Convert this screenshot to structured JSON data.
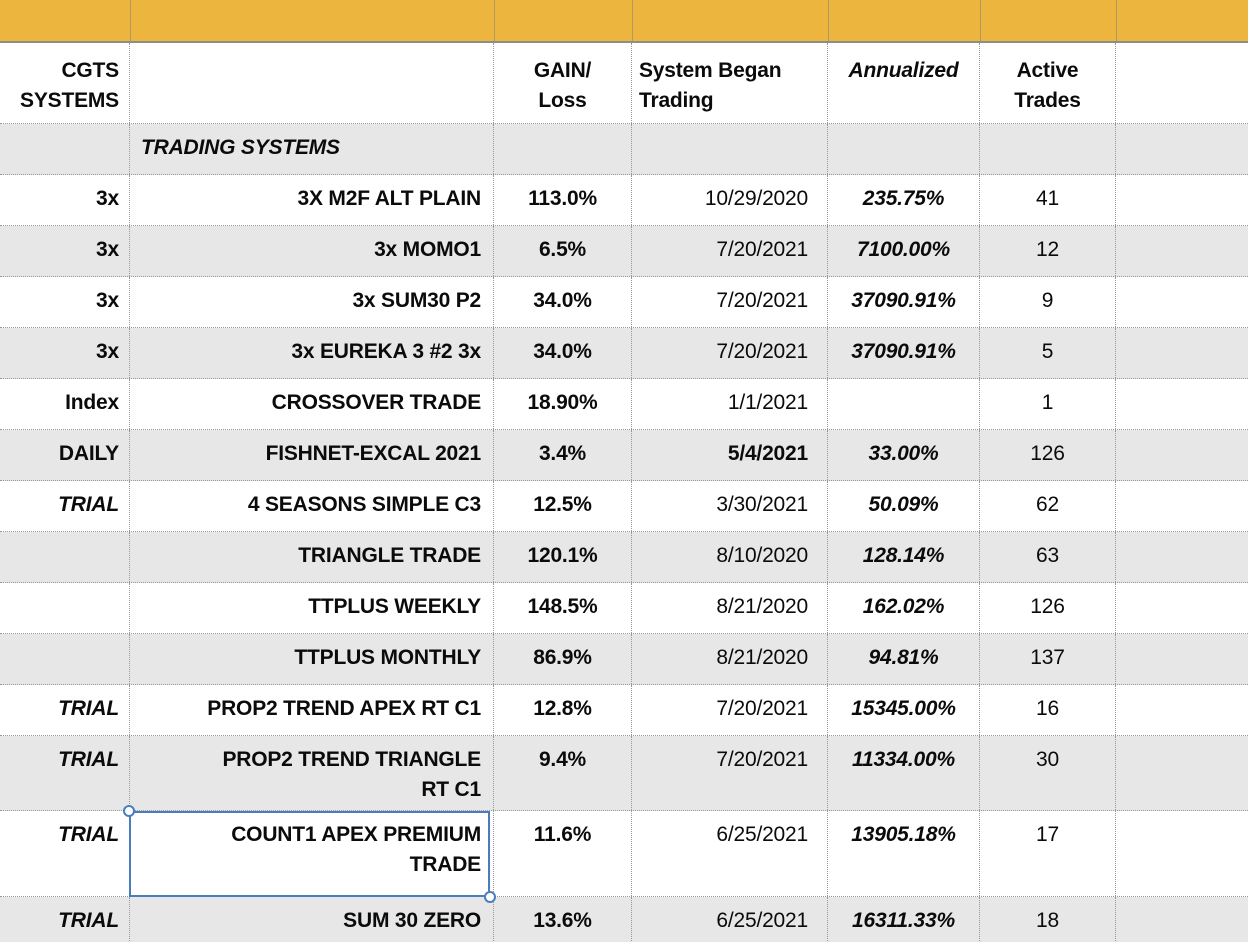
{
  "colors": {
    "header_band_yellow": "#ECB53E",
    "row_shade_gray": "#E7E7E7",
    "selection_blue": "#4A7DBE",
    "gridline_gray": "#979797"
  },
  "header": {
    "cgts": "CGTS\nSYSTEMS",
    "gain_loss": "GAIN/\nLoss",
    "system_began": "System Began\nTrading",
    "annualized": "Annualized",
    "active_trades": "Active\nTrades"
  },
  "table": {
    "rows": [
      {
        "type": "section",
        "tier": "",
        "name": "TRADING SYSTEMS",
        "gain": "",
        "began": "",
        "annualized": "",
        "trades": ""
      },
      {
        "tier": "3x",
        "name": "3X M2F ALT PLAIN",
        "gain": "113.0%",
        "began": "10/29/2020",
        "annualized": "235.75%",
        "trades": "41"
      },
      {
        "tier": "3x",
        "name": "3x MOMO1",
        "gain": "6.5%",
        "began": "7/20/2021",
        "annualized": "7100.00%",
        "trades": "12"
      },
      {
        "tier": "3x",
        "name": "3x SUM30 P2",
        "gain": "34.0%",
        "began": "7/20/2021",
        "annualized": "37090.91%",
        "trades": "9"
      },
      {
        "tier": "3x",
        "name": "3x EUREKA 3 #2 3x",
        "gain": "34.0%",
        "began": "7/20/2021",
        "annualized": "37090.91%",
        "trades": "5"
      },
      {
        "tier": "Index",
        "name": "CROSSOVER TRADE",
        "gain": "18.90%",
        "began": "1/1/2021",
        "annualized": "",
        "trades": "1"
      },
      {
        "tier": "DAILY",
        "name": "FISHNET-EXCAL 2021",
        "gain": "3.4%",
        "began": "5/4/2021",
        "began_bold": true,
        "annualized": "33.00%",
        "trades": "126"
      },
      {
        "tier": "TRIAL",
        "tier_italic": true,
        "name": "4 SEASONS SIMPLE C3",
        "gain": "12.5%",
        "began": "3/30/2021",
        "annualized": "50.09%",
        "trades": "62"
      },
      {
        "tier": "",
        "name": "TRIANGLE TRADE",
        "gain": "120.1%",
        "began": "8/10/2020",
        "annualized": "128.14%",
        "trades": "63"
      },
      {
        "tier": "",
        "name": "TTPLUS WEEKLY",
        "gain": "148.5%",
        "began": "8/21/2020",
        "annualized": "162.02%",
        "trades": "126"
      },
      {
        "tier": "",
        "name": "TTPLUS MONTHLY",
        "gain": "86.9%",
        "began": "8/21/2020",
        "annualized": "94.81%",
        "trades": "137"
      },
      {
        "tier": "TRIAL",
        "tier_italic": true,
        "name": "PROP2 TREND APEX RT C1",
        "gain": "12.8%",
        "began": "7/20/2021",
        "annualized": "15345.00%",
        "trades": "16"
      },
      {
        "tier": "TRIAL",
        "tier_italic": true,
        "name": "PROP2 TREND TRIANGLE\nRT C1",
        "gain": "9.4%",
        "began": "7/20/2021",
        "annualized": "11334.00%",
        "trades": "30",
        "size": "tall"
      },
      {
        "tier": "TRIAL",
        "tier_italic": true,
        "name": "COUNT1 APEX PREMIUM\nTRADE",
        "gain": "11.6%",
        "began": "6/25/2021",
        "annualized": "13905.18%",
        "trades": "17",
        "size": "xtall",
        "selected": true
      },
      {
        "tier": "TRIAL",
        "tier_italic": true,
        "name": "SUM 30 ZERO",
        "gain": "13.6%",
        "began": "6/25/2021",
        "annualized": "16311.33%",
        "trades": "18"
      }
    ]
  }
}
